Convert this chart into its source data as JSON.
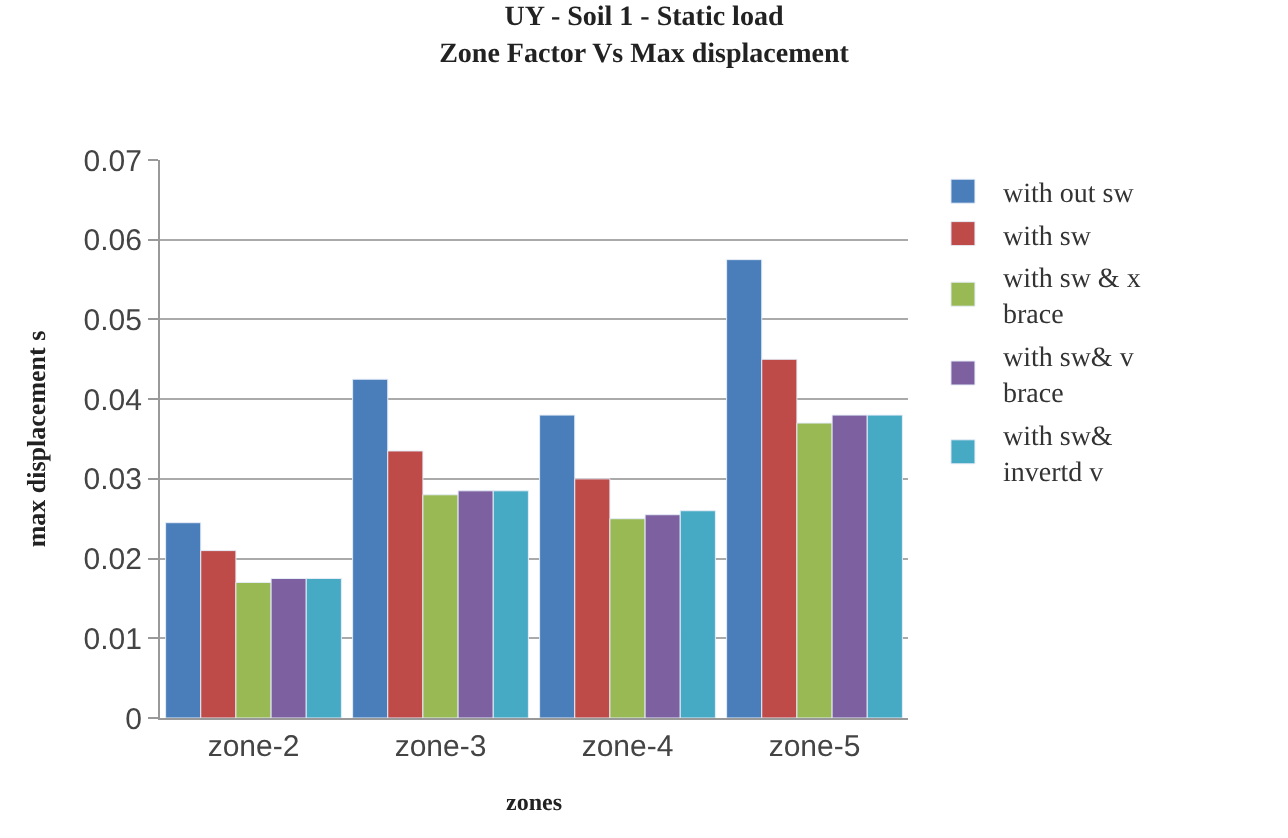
{
  "chart_data": {
    "type": "bar",
    "title": "UY - Soil 1 - Static load",
    "subtitle": "Zone Factor Vs Max displacement",
    "xlabel": "zones",
    "ylabel": "max displacement s",
    "categories": [
      "zone-2",
      "zone-3",
      "zone-4",
      "zone-5"
    ],
    "series": [
      {
        "name": "with out sw",
        "color": "#4a7ebb",
        "values": [
          0.0245,
          0.0425,
          0.038,
          0.0575
        ]
      },
      {
        "name": "with sw",
        "color": "#be4b48",
        "values": [
          0.021,
          0.0335,
          0.03,
          0.045
        ]
      },
      {
        "name": "with sw & x brace",
        "color": "#98b954",
        "values": [
          0.017,
          0.028,
          0.025,
          0.037
        ]
      },
      {
        "name": "with sw& v brace",
        "color": "#7d60a0",
        "values": [
          0.0175,
          0.0285,
          0.0255,
          0.038
        ]
      },
      {
        "name": "with sw& invertd v",
        "color": "#46aac5",
        "values": [
          0.0175,
          0.0285,
          0.026,
          0.038
        ]
      }
    ],
    "ylim": [
      0,
      0.07
    ],
    "yticks": [
      {
        "value": 0,
        "label": "0"
      },
      0.01,
      0.02,
      0.03,
      0.04,
      0.05,
      0.06,
      0.07
    ],
    "grid": "y",
    "legend": "right"
  }
}
